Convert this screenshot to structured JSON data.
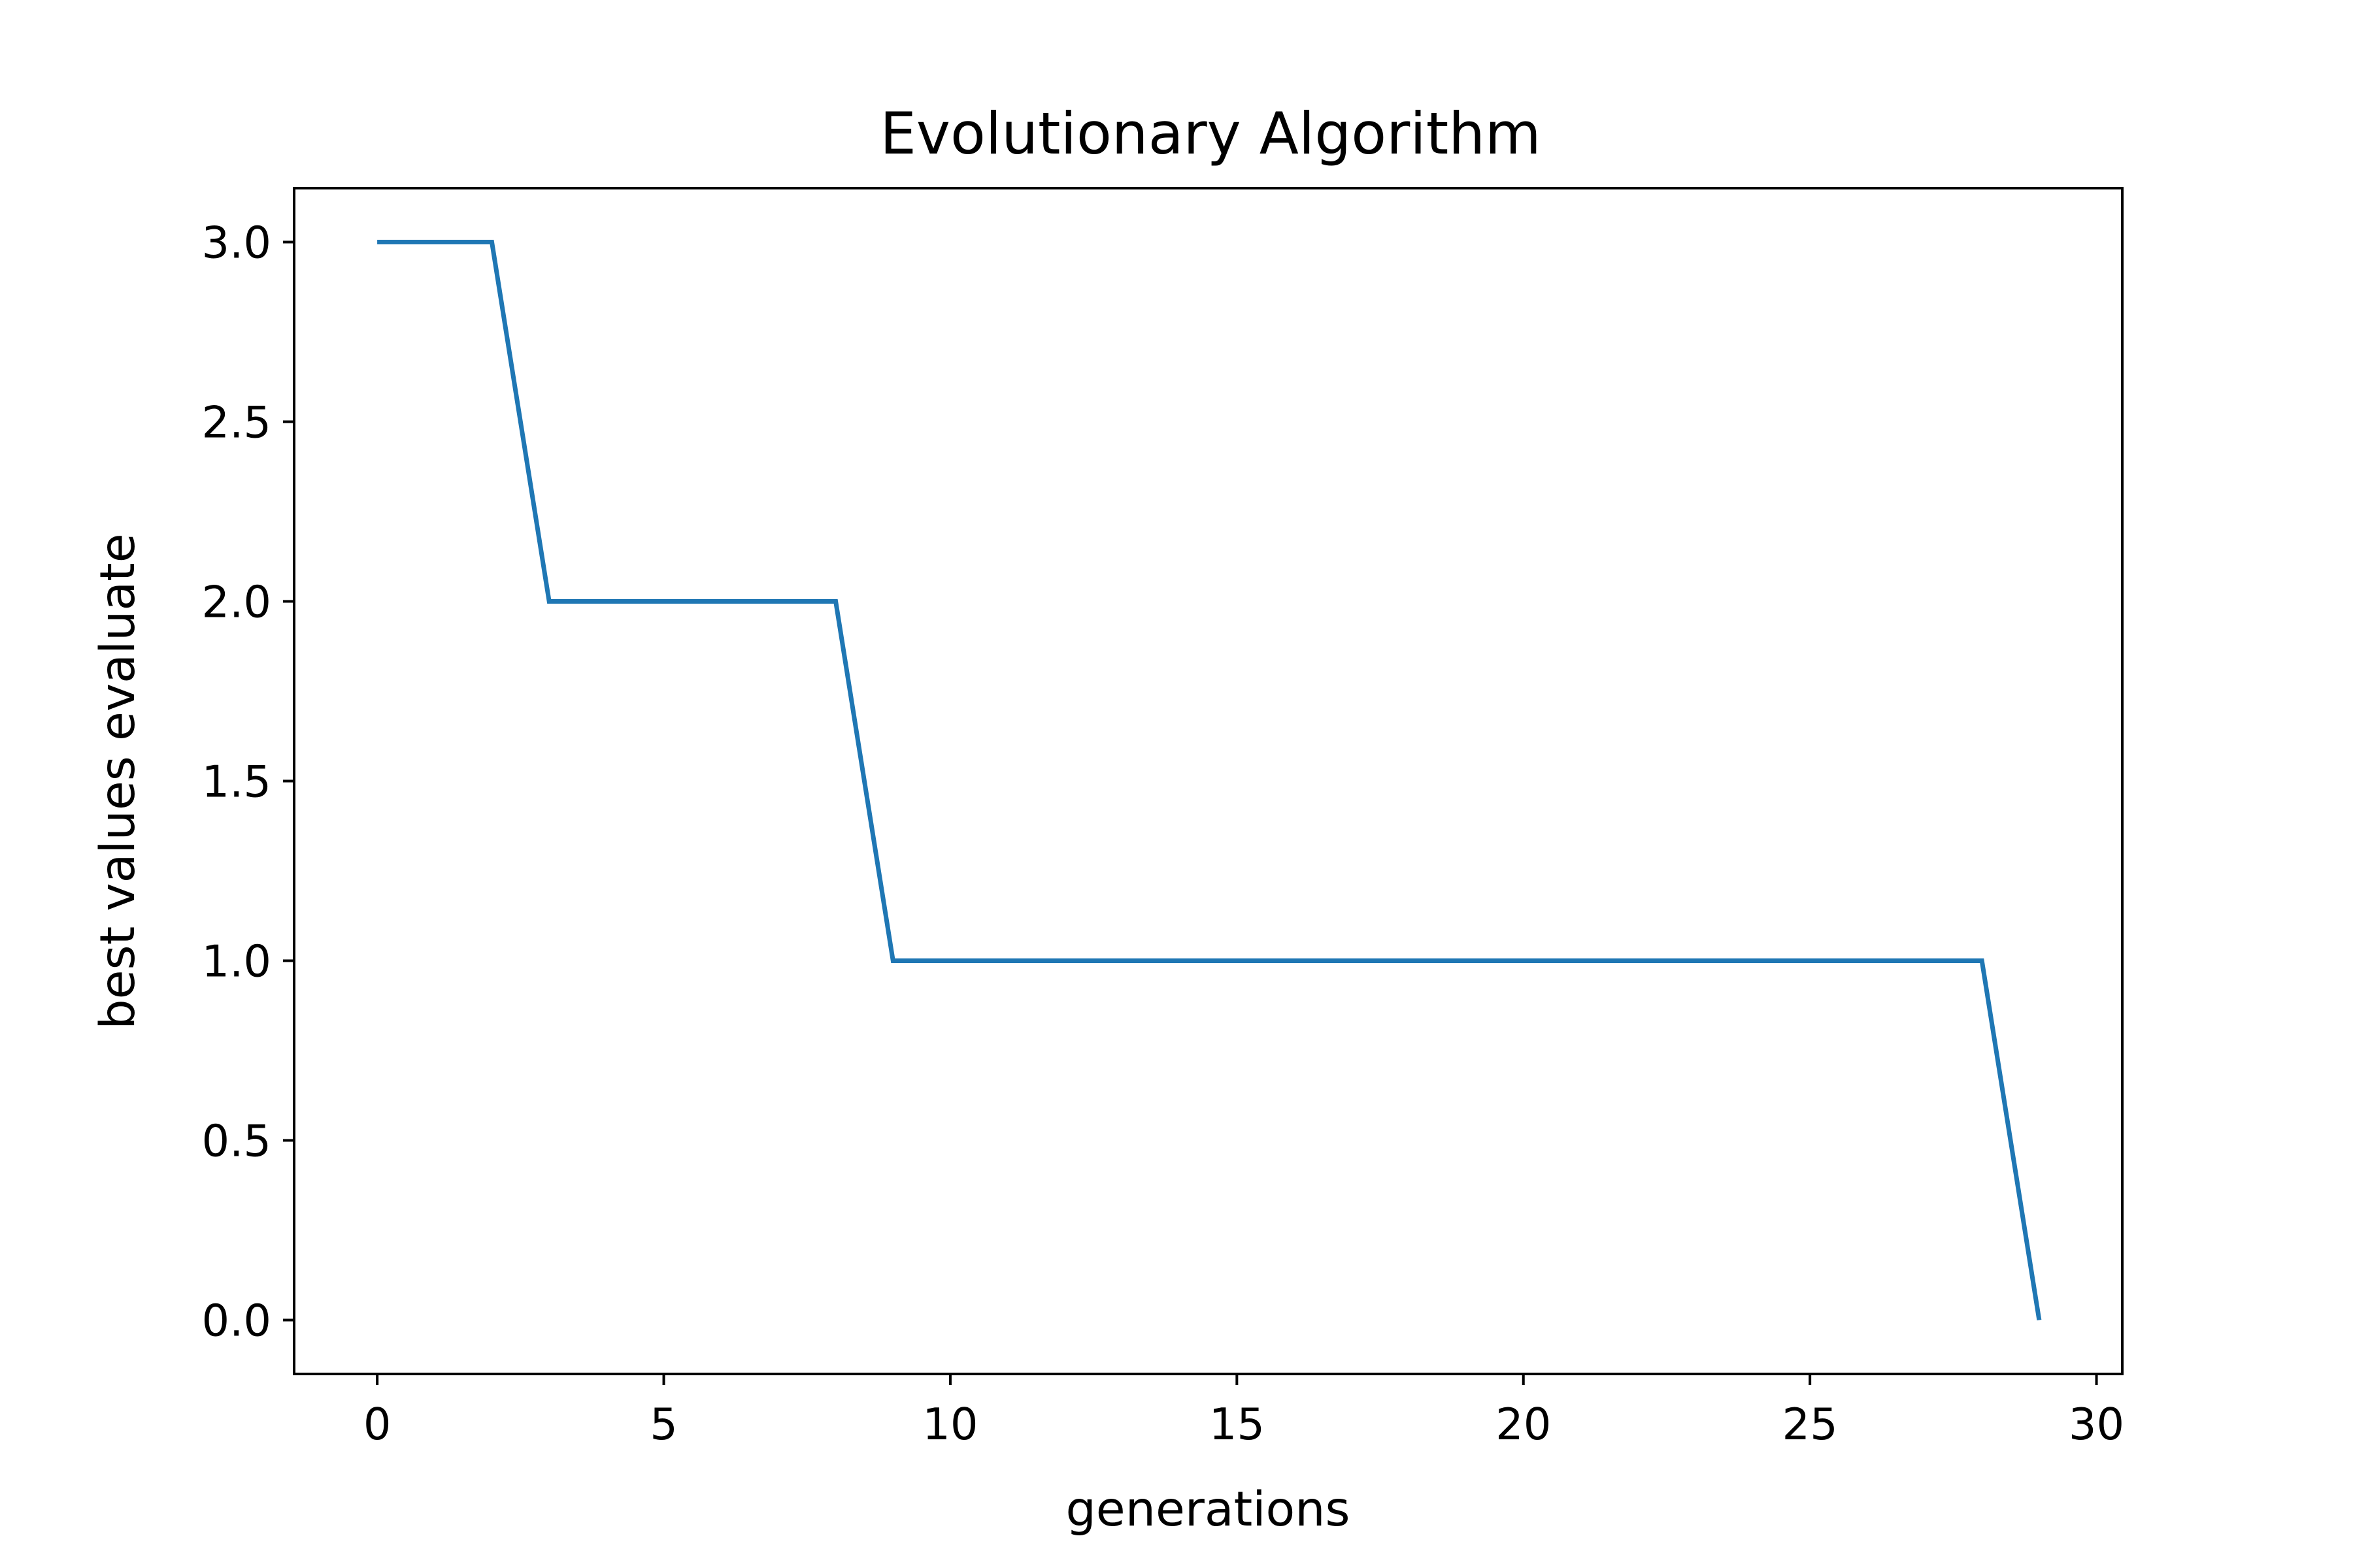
{
  "chart_data": {
    "type": "line",
    "title": "Evolutionary Algorithm",
    "xlabel": "generations",
    "ylabel": "best values evaluate",
    "xlim": [
      -1.45,
      30.45
    ],
    "ylim": [
      -0.15,
      3.15
    ],
    "xticks": [
      0,
      5,
      10,
      15,
      20,
      25,
      30
    ],
    "xtick_labels": [
      "0",
      "5",
      "10",
      "15",
      "20",
      "25",
      "30"
    ],
    "yticks": [
      0.0,
      0.5,
      1.0,
      1.5,
      2.0,
      2.5,
      3.0
    ],
    "ytick_labels": [
      "0.0",
      "0.5",
      "1.0",
      "1.5",
      "2.0",
      "2.5",
      "3.0"
    ],
    "grid": false,
    "series": [
      {
        "color": "#1f77b4",
        "x": [
          0,
          1,
          2,
          3,
          4,
          5,
          6,
          7,
          8,
          9,
          10,
          11,
          12,
          13,
          14,
          15,
          16,
          17,
          18,
          19,
          20,
          21,
          22,
          23,
          24,
          25,
          26,
          27,
          28,
          29
        ],
        "y": [
          3,
          3,
          3,
          2,
          2,
          2,
          2,
          2,
          2,
          1,
          1,
          1,
          1,
          1,
          1,
          1,
          1,
          1,
          1,
          1,
          1,
          1,
          1,
          1,
          1,
          1,
          1,
          1,
          1,
          0
        ]
      }
    ]
  }
}
